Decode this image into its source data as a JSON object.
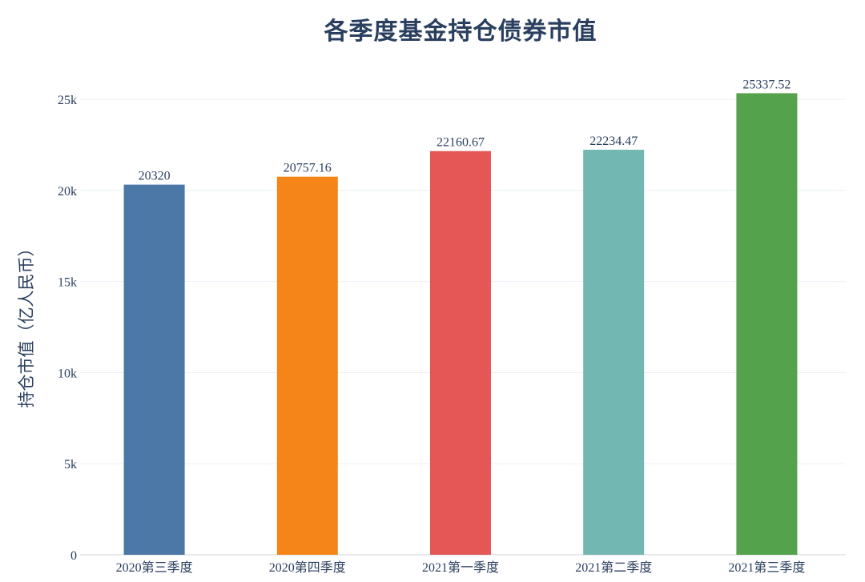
{
  "chart_data": {
    "type": "bar",
    "title": "各季度基金持仓债券市值",
    "xlabel": "",
    "ylabel": "持仓市值（亿人民币）",
    "categories": [
      "2020第三季度",
      "2020第四季度",
      "2021第一季度",
      "2021第二季度",
      "2021第三季度"
    ],
    "values": [
      20320,
      20757.16,
      22160.67,
      22234.47,
      25337.52
    ],
    "value_labels": [
      "20320",
      "20757.16",
      "22160.67",
      "22234.47",
      "25337.52"
    ],
    "colors": [
      "#4c78a8",
      "#f58518",
      "#e45756",
      "#72b7b2",
      "#54a24b"
    ],
    "ylim": [
      0,
      26500
    ],
    "yticks": [
      0,
      5000,
      10000,
      15000,
      20000,
      25000
    ],
    "ytick_labels": [
      "0",
      "5k",
      "10k",
      "15k",
      "20k",
      "25k"
    ],
    "grid": true,
    "legend": "none"
  }
}
